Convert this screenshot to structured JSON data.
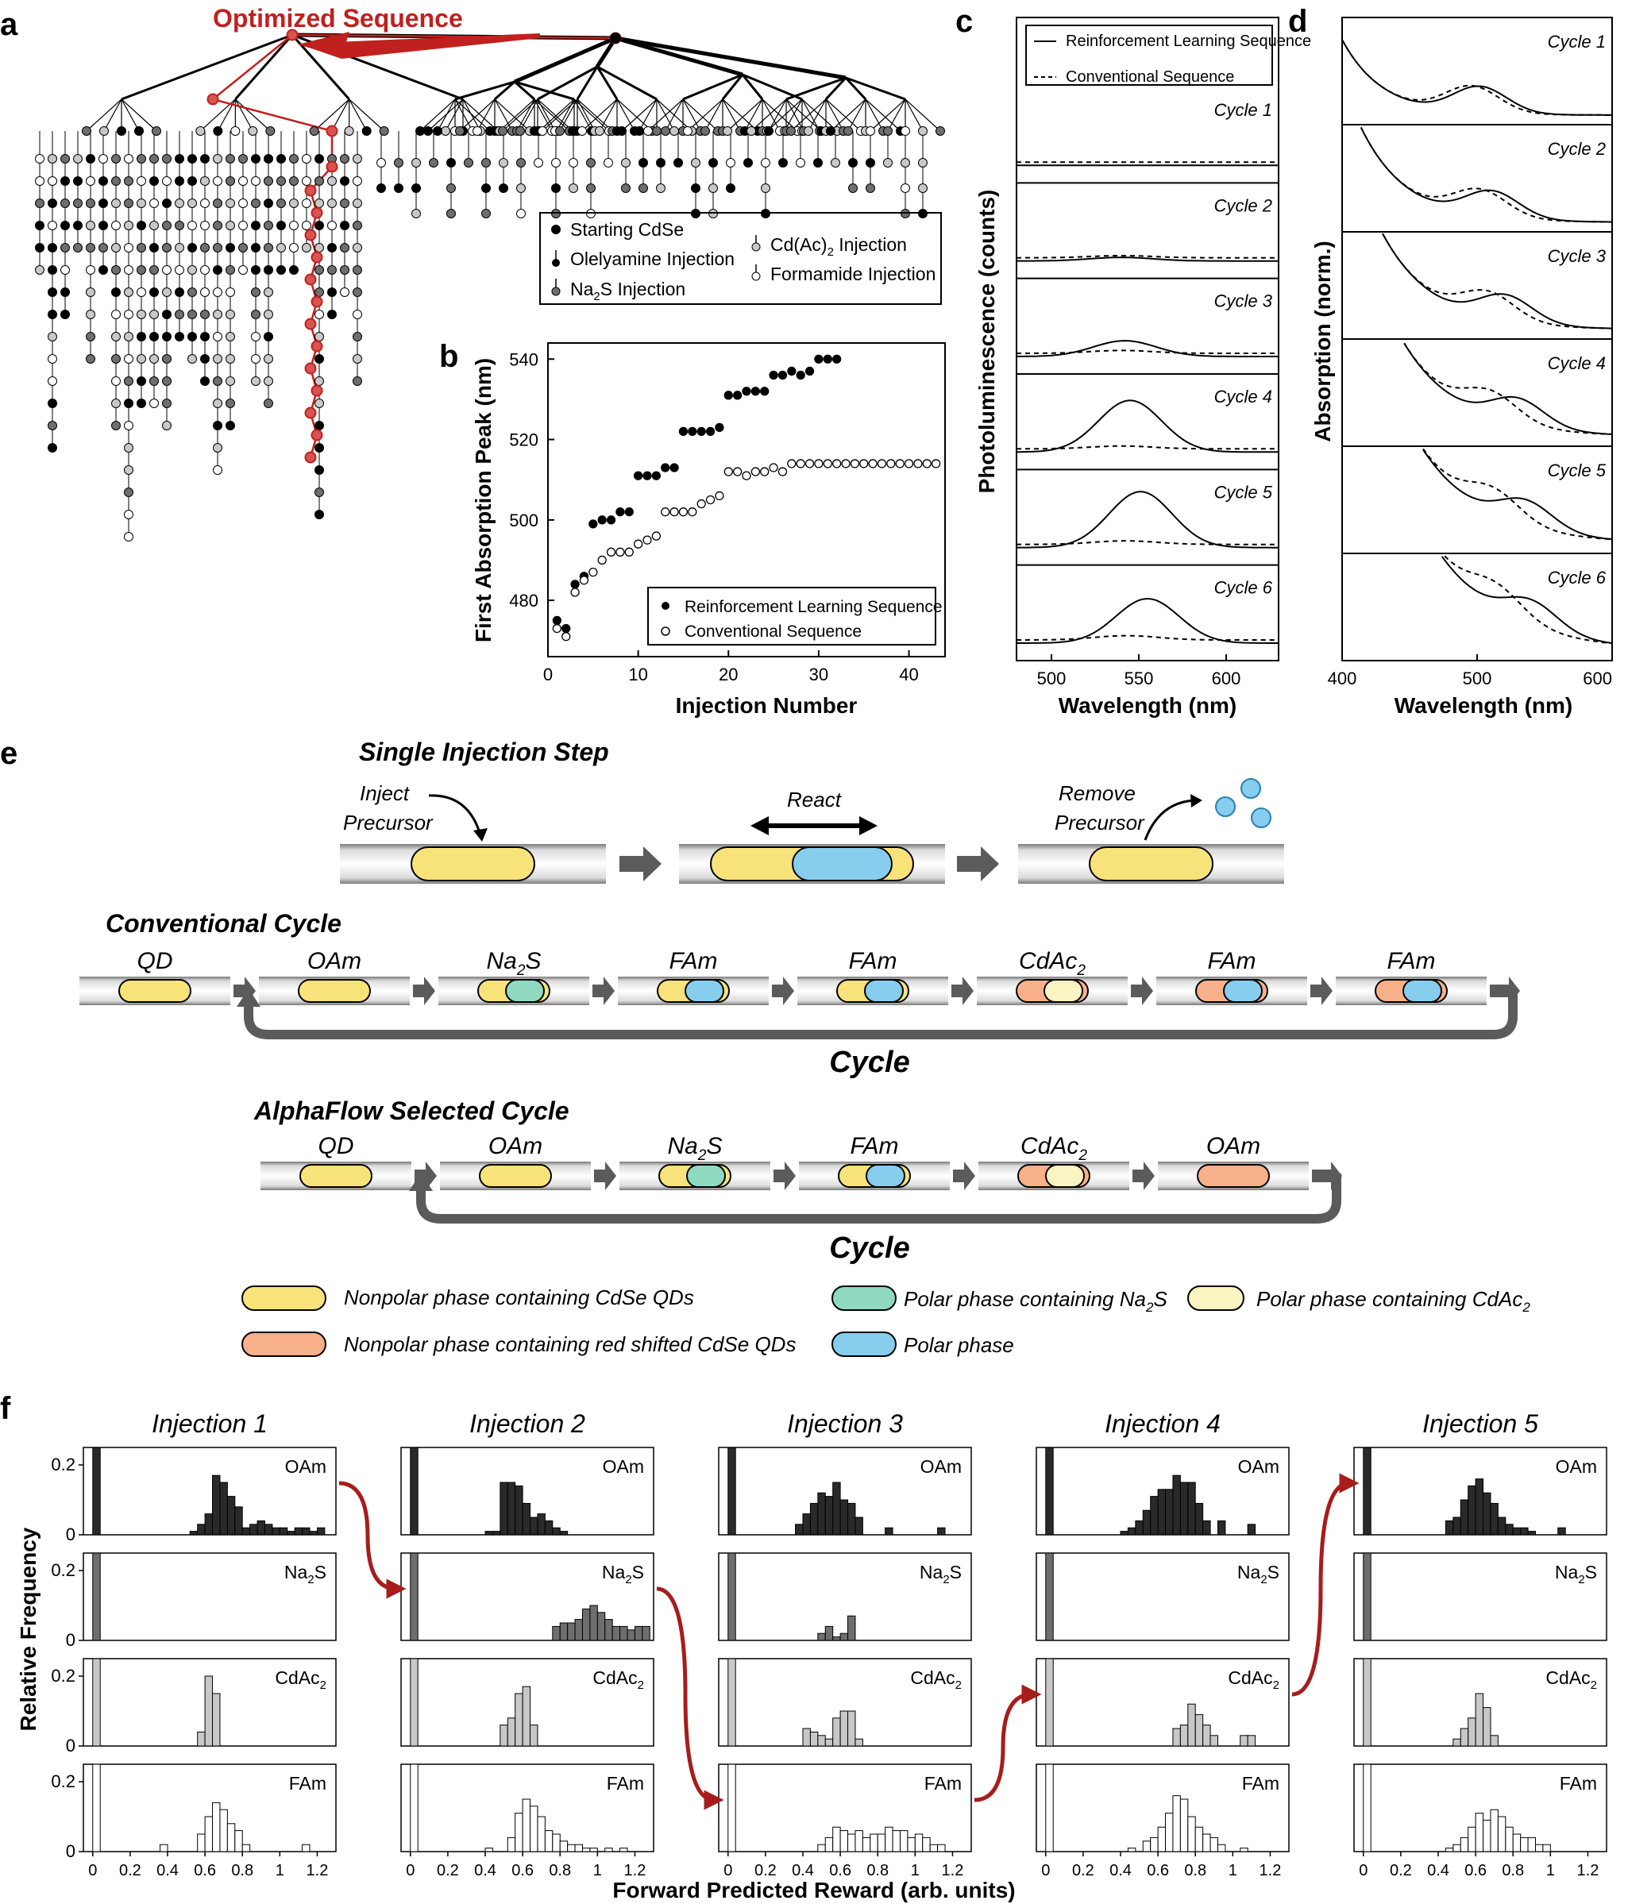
{
  "panel_letters": {
    "a": "a",
    "b": "b",
    "c": "c",
    "d": "d",
    "e": "e",
    "f": "f"
  },
  "panel_a": {
    "arrow_label": "Optimized Sequence",
    "legend": {
      "starting": "Starting CdSe",
      "oam": "Olelyamine Injection",
      "na2s_base": "Na",
      "na2s_sub": "2",
      "na2s_tail": "S Injection",
      "cdac_base": "Cd(Ac)",
      "cdac_sub": "2",
      "cdac_tail": " Injection",
      "fam": "Formamide Injection"
    },
    "colors": {
      "highlight": "#c0201e"
    }
  },
  "chart_data": [
    {
      "panel": "b",
      "type": "scatter",
      "xlabel": "Injection Number",
      "ylabel": "First Absorption Peak (nm)",
      "xlim": [
        0,
        44
      ],
      "ylim": [
        466,
        544
      ],
      "x_ticks": [
        "0",
        "10",
        "20",
        "30",
        "40"
      ],
      "y_ticks": [
        "480",
        "500",
        "520",
        "540"
      ],
      "legend_position": "bottom-right",
      "series": [
        {
          "name": "Reinforcement Learning Sequence",
          "marker": "filled",
          "x": [
            1,
            2,
            3,
            4,
            5,
            6,
            7,
            8,
            9,
            10,
            11,
            12,
            13,
            14,
            15,
            16,
            17,
            18,
            19,
            20,
            21,
            22,
            23,
            24,
            25,
            26,
            27,
            28,
            29,
            30,
            31,
            32
          ],
          "y": [
            475,
            473,
            484,
            486,
            499,
            500,
            500,
            502,
            502,
            511,
            511,
            511,
            513,
            513,
            522,
            522,
            522,
            522,
            523,
            531,
            531,
            532,
            532,
            532,
            536,
            536,
            537,
            536,
            537,
            540,
            540,
            540
          ]
        },
        {
          "name": "Conventional Sequence",
          "marker": "open",
          "x": [
            1,
            2,
            3,
            4,
            5,
            6,
            7,
            8,
            9,
            10,
            11,
            12,
            13,
            14,
            15,
            16,
            17,
            18,
            19,
            20,
            21,
            22,
            23,
            24,
            25,
            26,
            27,
            28,
            29,
            30,
            31,
            32,
            33,
            34,
            35,
            36,
            37,
            38,
            39,
            40,
            41,
            42,
            43
          ],
          "y": [
            473,
            471,
            482,
            485,
            487,
            490,
            492,
            492,
            492,
            494,
            495,
            496,
            502,
            502,
            502,
            502,
            504,
            505,
            506,
            512,
            512,
            511,
            512,
            512,
            513,
            512,
            514,
            514,
            514,
            514,
            514,
            514,
            514,
            514,
            514,
            514,
            514,
            514,
            514,
            514,
            514,
            514,
            514
          ]
        }
      ]
    },
    {
      "panel": "c",
      "type": "line",
      "xlabel": "Wavelength (nm)",
      "ylabel": "Photoluminescence (counts)",
      "xlim": [
        480,
        630
      ],
      "x_ticks": [
        "500",
        "550",
        "600"
      ],
      "legend": {
        "solid": "Reinforcement Learning Sequence",
        "dashed": "Conventional Sequence"
      },
      "cycles": [
        {
          "label": "Cycle 1",
          "rl": {
            "center": 540,
            "width": 18,
            "amp": 0.0
          },
          "conv": {
            "center": 540,
            "width": 18,
            "amp": 0.0
          }
        },
        {
          "label": "Cycle 2",
          "rl": {
            "center": 540,
            "width": 18,
            "amp": 0.05
          },
          "conv": {
            "center": 540,
            "width": 18,
            "amp": 0.03
          }
        },
        {
          "label": "Cycle 3",
          "rl": {
            "center": 542,
            "width": 18,
            "amp": 0.22
          },
          "conv": {
            "center": 540,
            "width": 18,
            "amp": 0.04
          }
        },
        {
          "label": "Cycle 4",
          "rl": {
            "center": 545,
            "width": 18,
            "amp": 0.72
          },
          "conv": {
            "center": 540,
            "width": 18,
            "amp": 0.04
          }
        },
        {
          "label": "Cycle 5",
          "rl": {
            "center": 551,
            "width": 18,
            "amp": 0.78
          },
          "conv": {
            "center": 542,
            "width": 18,
            "amp": 0.05
          }
        },
        {
          "label": "Cycle 6",
          "rl": {
            "center": 555,
            "width": 18,
            "amp": 0.62
          },
          "conv": {
            "center": 543,
            "width": 18,
            "amp": 0.06
          }
        }
      ]
    },
    {
      "panel": "d",
      "type": "line",
      "xlabel": "Wavelength (nm)",
      "ylabel": "Absorption (norm.)",
      "xlim": [
        400,
        600
      ],
      "x_ticks": [
        "400",
        "500",
        "600"
      ],
      "cycles": [
        {
          "label": "Cycle 1",
          "rl_peak": 502,
          "conv_peak": 496
        },
        {
          "label": "Cycle 2",
          "rl_peak": 511,
          "conv_peak": 502
        },
        {
          "label": "Cycle 3",
          "rl_peak": 521,
          "conv_peak": 508
        },
        {
          "label": "Cycle 4",
          "rl_peak": 530,
          "conv_peak": 510
        },
        {
          "label": "Cycle  5",
          "rl_peak": 536,
          "conv_peak": 512
        },
        {
          "label": "Cycle 6",
          "rl_peak": 540,
          "conv_peak": 514
        }
      ]
    },
    {
      "panel": "f",
      "type": "bar",
      "xlabel": "Forward Predicted Reward (arb. units)",
      "ylabel": "Relative Frequency",
      "xlim": [
        -0.05,
        1.3
      ],
      "ylim": [
        0,
        0.25
      ],
      "x_ticks": [
        "0",
        "0.2",
        "0.4",
        "0.6",
        "0.8",
        "1",
        "1.2"
      ],
      "y_ticks": [
        "0",
        "0.2"
      ],
      "bin_width": 0.04,
      "columns": [
        "Injection 1",
        "Injection 2",
        "Injection 3",
        "Injection 4",
        "Injection 5"
      ],
      "row_labels": [
        {
          "base": "OAm",
          "sub": ""
        },
        {
          "base": "Na",
          "sub": "2",
          "tail": "S"
        },
        {
          "base": "CdAc",
          "sub": "2",
          "tail": ""
        },
        {
          "base": "FAm",
          "sub": ""
        }
      ],
      "row_colors": [
        "#2a2a2a",
        "#6e6e6e",
        "#c8c8c8",
        "#ffffff"
      ],
      "histograms": [
        [
          {
            "x": [
              0.54,
              0.58,
              0.62,
              0.66,
              0.7,
              0.74,
              0.78,
              0.82,
              0.86,
              0.9,
              0.94,
              0.98,
              1.02,
              1.06,
              1.1,
              1.14,
              1.18,
              1.22
            ],
            "y": [
              0.01,
              0.03,
              0.06,
              0.17,
              0.15,
              0.11,
              0.08,
              0.02,
              0.03,
              0.04,
              0.03,
              0.02,
              0.02,
              0.01,
              0.02,
              0.02,
              0.01,
              0.02
            ]
          },
          {
            "x": [],
            "y": []
          },
          {
            "x": [
              0.58,
              0.62,
              0.66
            ],
            "y": [
              0.04,
              0.2,
              0.15
            ]
          },
          {
            "x": [
              0.38,
              0.58,
              0.62,
              0.66,
              0.7,
              0.74,
              0.78,
              0.82,
              1.14
            ],
            "y": [
              0.02,
              0.05,
              0.1,
              0.14,
              0.12,
              0.08,
              0.06,
              0.02,
              0.02
            ]
          }
        ],
        [
          {
            "x": [
              0.42,
              0.46,
              0.5,
              0.54,
              0.58,
              0.62,
              0.66,
              0.7,
              0.74,
              0.78,
              0.82
            ],
            "y": [
              0.01,
              0.01,
              0.15,
              0.15,
              0.14,
              0.09,
              0.05,
              0.06,
              0.04,
              0.02,
              0.01
            ]
          },
          {
            "x": [
              0.78,
              0.82,
              0.86,
              0.9,
              0.94,
              0.98,
              1.02,
              1.06,
              1.1,
              1.14,
              1.18,
              1.22,
              1.26
            ],
            "y": [
              0.04,
              0.05,
              0.05,
              0.06,
              0.09,
              0.1,
              0.08,
              0.06,
              0.04,
              0.04,
              0.03,
              0.04,
              0.04
            ]
          },
          {
            "x": [
              0.5,
              0.54,
              0.58,
              0.62,
              0.66
            ],
            "y": [
              0.06,
              0.08,
              0.15,
              0.17,
              0.06
            ]
          },
          {
            "x": [
              0.42,
              0.54,
              0.58,
              0.62,
              0.66,
              0.7,
              0.74,
              0.78,
              0.82,
              0.86,
              0.9,
              0.94,
              0.98,
              1.06,
              1.14
            ],
            "y": [
              0.01,
              0.04,
              0.11,
              0.15,
              0.13,
              0.1,
              0.06,
              0.05,
              0.03,
              0.02,
              0.02,
              0.01,
              0.01,
              0.01,
              0.01
            ]
          }
        ],
        [
          {
            "x": [
              0.38,
              0.42,
              0.46,
              0.5,
              0.54,
              0.58,
              0.62,
              0.66,
              0.7,
              0.86,
              1.14
            ],
            "y": [
              0.03,
              0.06,
              0.09,
              0.12,
              0.11,
              0.15,
              0.1,
              0.09,
              0.05,
              0.02,
              0.02
            ]
          },
          {
            "x": [
              0.5,
              0.54,
              0.58,
              0.62,
              0.66
            ],
            "y": [
              0.02,
              0.04,
              0.01,
              0.02,
              0.07
            ]
          },
          {
            "x": [
              0.42,
              0.46,
              0.5,
              0.54,
              0.58,
              0.62,
              0.66,
              0.7
            ],
            "y": [
              0.05,
              0.04,
              0.03,
              0.02,
              0.08,
              0.1,
              0.1,
              0.02
            ]
          },
          {
            "x": [
              0.5,
              0.54,
              0.58,
              0.62,
              0.66,
              0.7,
              0.74,
              0.78,
              0.82,
              0.86,
              0.9,
              0.94,
              0.98,
              1.02,
              1.06,
              1.1,
              1.14
            ],
            "y": [
              0.02,
              0.04,
              0.07,
              0.06,
              0.05,
              0.06,
              0.04,
              0.05,
              0.05,
              0.07,
              0.06,
              0.06,
              0.04,
              0.05,
              0.04,
              0.02,
              0.02
            ]
          }
        ],
        [
          {
            "x": [
              0.42,
              0.46,
              0.5,
              0.54,
              0.58,
              0.62,
              0.66,
              0.7,
              0.74,
              0.78,
              0.82,
              0.86,
              0.94,
              1.1
            ],
            "y": [
              0.01,
              0.02,
              0.04,
              0.07,
              0.11,
              0.13,
              0.13,
              0.17,
              0.15,
              0.15,
              0.09,
              0.04,
              0.04,
              0.03
            ]
          },
          {
            "x": [],
            "y": []
          },
          {
            "x": [
              0.7,
              0.74,
              0.78,
              0.82,
              0.86,
              0.9,
              1.06,
              1.1
            ],
            "y": [
              0.05,
              0.06,
              0.12,
              0.09,
              0.06,
              0.03,
              0.03,
              0.03
            ]
          },
          {
            "x": [
              0.46,
              0.54,
              0.58,
              0.62,
              0.66,
              0.7,
              0.74,
              0.78,
              0.82,
              0.86,
              0.9,
              0.94,
              1.06
            ],
            "y": [
              0.01,
              0.03,
              0.04,
              0.07,
              0.11,
              0.16,
              0.15,
              0.1,
              0.07,
              0.05,
              0.04,
              0.02,
              0.01
            ]
          }
        ],
        [
          {
            "x": [
              0.46,
              0.5,
              0.54,
              0.58,
              0.62,
              0.66,
              0.7,
              0.74,
              0.78,
              0.82,
              0.86,
              0.9,
              1.06
            ],
            "y": [
              0.04,
              0.05,
              0.1,
              0.14,
              0.16,
              0.12,
              0.09,
              0.05,
              0.03,
              0.02,
              0.02,
              0.01,
              0.02
            ]
          },
          {
            "x": [],
            "y": []
          },
          {
            "x": [
              0.5,
              0.54,
              0.58,
              0.62,
              0.66,
              0.7
            ],
            "y": [
              0.02,
              0.05,
              0.08,
              0.15,
              0.11,
              0.03
            ]
          },
          {
            "x": [
              0.46,
              0.5,
              0.54,
              0.58,
              0.62,
              0.66,
              0.7,
              0.74,
              0.78,
              0.82,
              0.86,
              0.9,
              0.94,
              0.98
            ],
            "y": [
              0.01,
              0.02,
              0.04,
              0.07,
              0.11,
              0.09,
              0.12,
              0.1,
              0.07,
              0.05,
              0.04,
              0.04,
              0.02,
              0.02
            ]
          }
        ]
      ],
      "reference_bar": {
        "x": 0.02,
        "y": 0.25
      }
    }
  ],
  "panel_e": {
    "single_step_title": "Single Injection Step",
    "inject_1": "Inject",
    "inject_2": "Precursor",
    "react": "React",
    "remove_1": "Remove",
    "remove_2": "Precursor",
    "conventional_title": "Conventional Cycle",
    "alphaflow_title": "AlphaFlow Selected Cycle",
    "cycle_label": "Cycle",
    "conventional_steps": [
      {
        "label": "QD",
        "sub": "",
        "tail": "",
        "outer": "yellow",
        "inner": ""
      },
      {
        "label": "OAm",
        "sub": "",
        "tail": "",
        "outer": "yellow",
        "inner": ""
      },
      {
        "label": "Na",
        "sub": "2",
        "tail": "S",
        "outer": "yellow",
        "inner": "teal"
      },
      {
        "label": "FAm",
        "sub": "",
        "tail": "",
        "outer": "yellow",
        "inner": "blue"
      },
      {
        "label": "FAm",
        "sub": "",
        "tail": "",
        "outer": "yellow",
        "inner": "blue"
      },
      {
        "label": "CdAc",
        "sub": "2",
        "tail": "",
        "outer": "orange",
        "inner": "cream"
      },
      {
        "label": "FAm",
        "sub": "",
        "tail": "",
        "outer": "orange",
        "inner": "blue"
      },
      {
        "label": "FAm",
        "sub": "",
        "tail": "",
        "outer": "orange",
        "inner": "blue"
      }
    ],
    "alphaflow_steps": [
      {
        "label": "QD",
        "sub": "",
        "tail": "",
        "outer": "yellow",
        "inner": ""
      },
      {
        "label": "OAm",
        "sub": "",
        "tail": "",
        "outer": "yellow",
        "inner": ""
      },
      {
        "label": "Na",
        "sub": "2",
        "tail": "S",
        "outer": "yellow",
        "inner": "teal"
      },
      {
        "label": "FAm",
        "sub": "",
        "tail": "",
        "outer": "yellow",
        "inner": "blue"
      },
      {
        "label": "CdAc",
        "sub": "2",
        "tail": "",
        "outer": "orange",
        "inner": "cream"
      },
      {
        "label": "OAm",
        "sub": "",
        "tail": "",
        "outer": "orange",
        "inner": ""
      }
    ],
    "legend": {
      "yellow": "Nonpolar phase containing CdSe QDs",
      "orange": "Nonpolar phase containing red shifted CdSe QDs",
      "teal_base": "Polar phase containing Na",
      "teal_sub": "2",
      "teal_tail": "S",
      "blue": "Polar phase",
      "cream_base": "Polar phase containing CdAc",
      "cream_sub": "2"
    },
    "colors": {
      "yellow": "#f8e27a",
      "orange": "#f7b08a",
      "teal": "#8fd9c0",
      "blue": "#87cdee",
      "cream": "#faf3c2",
      "arrow": "#5b5b5b"
    }
  }
}
